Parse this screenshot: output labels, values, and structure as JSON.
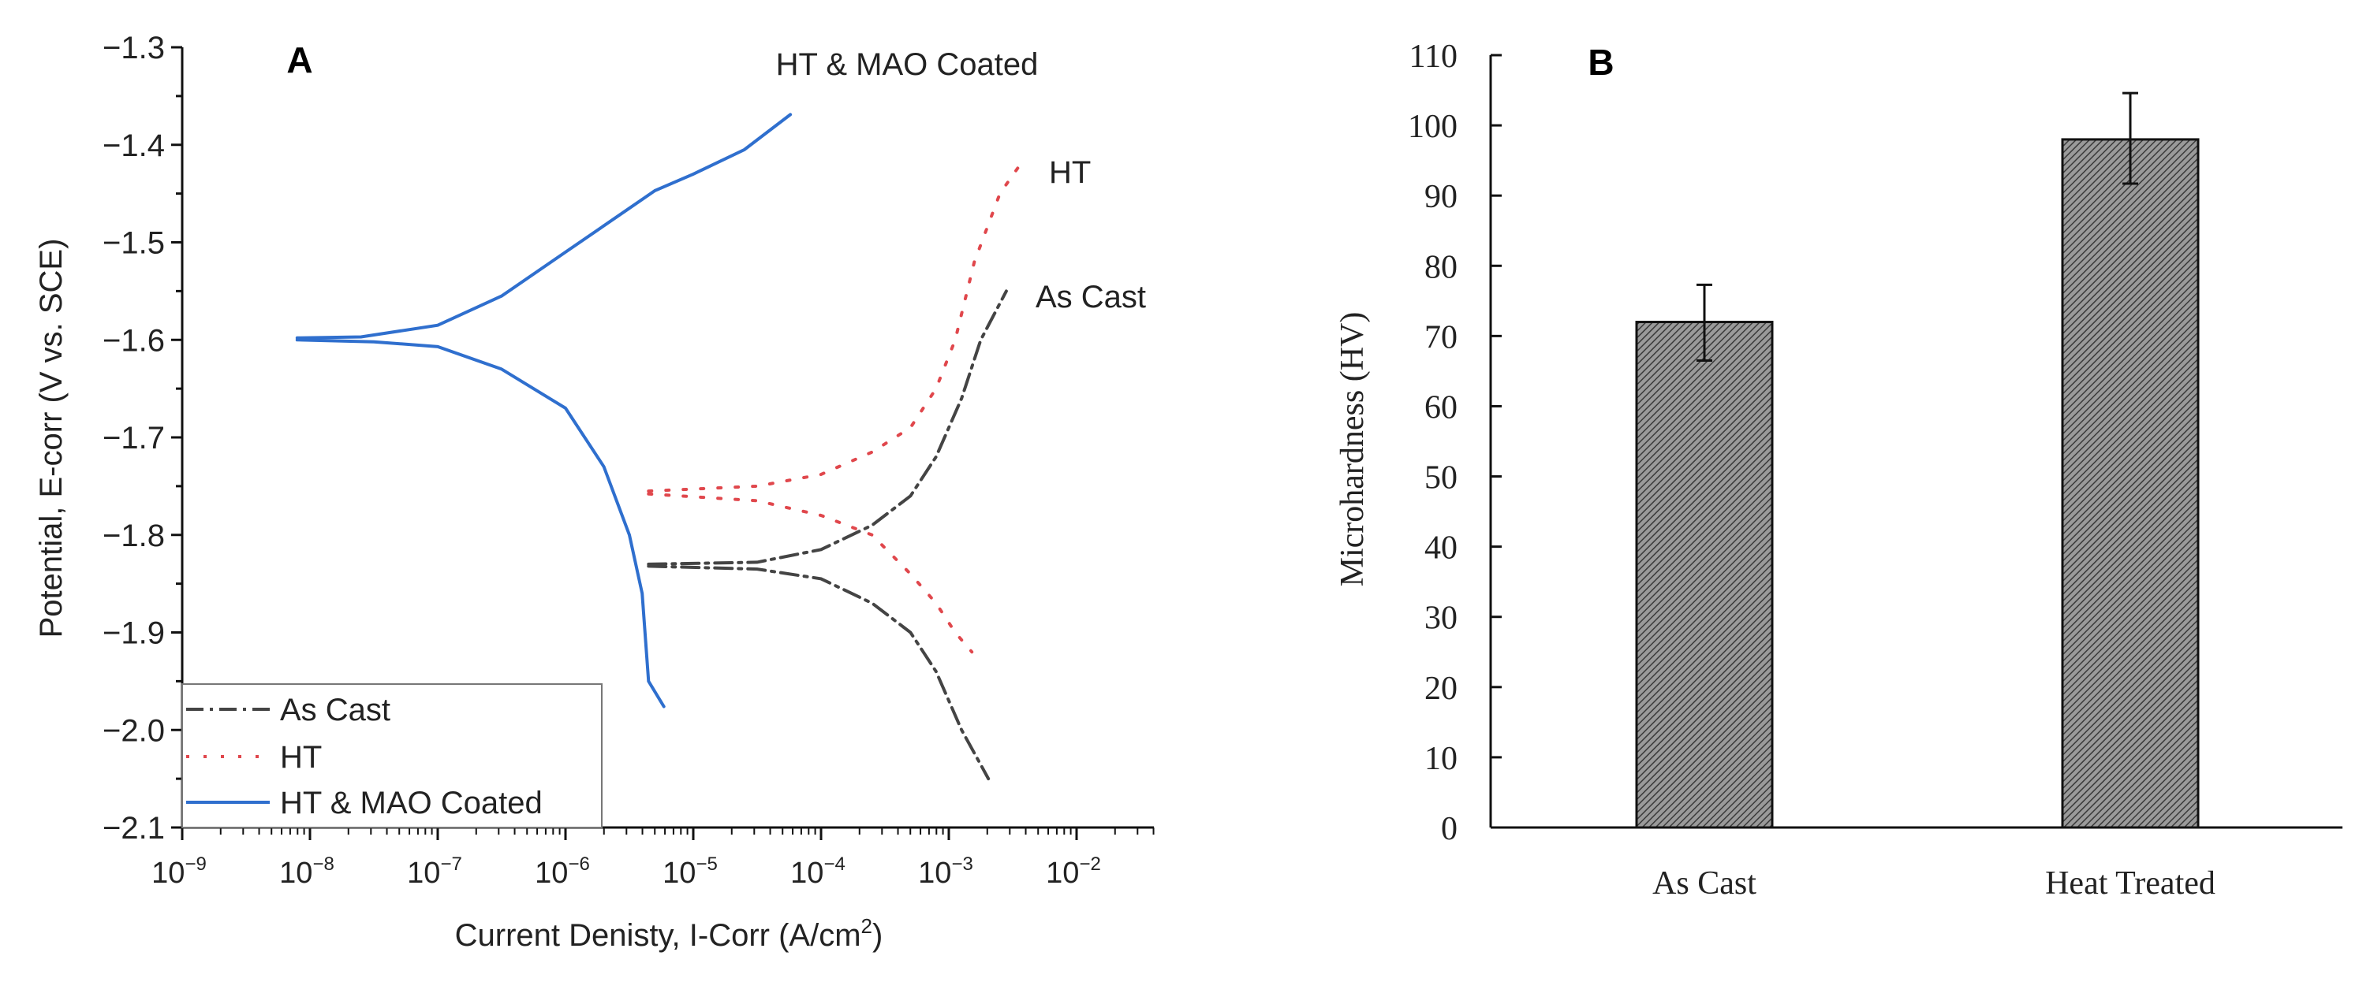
{
  "chart_data": [
    {
      "type": "line",
      "panel_label": "A",
      "xlabel": "Current Denisty, I-Corr (A/cm",
      "xlabel_sup": "2",
      "xlabel_end": ")",
      "ylabel": "Potential, E-corr (V vs. SCE)",
      "xscale": "log",
      "xlim_log10": [
        -9,
        -1.4
      ],
      "ylim": [
        -2.1,
        -1.3
      ],
      "x_ticks": [
        {
          "base": "10",
          "exp": "-9"
        },
        {
          "base": "10",
          "exp": "-8"
        },
        {
          "base": "10",
          "exp": "-7"
        },
        {
          "base": "10",
          "exp": "-6"
        },
        {
          "base": "10",
          "exp": "-5"
        },
        {
          "base": "10",
          "exp": "-4"
        },
        {
          "base": "10",
          "exp": "-3"
        },
        {
          "base": "10",
          "exp": "-2"
        }
      ],
      "y_ticks": [
        "-1.3",
        "-1.4",
        "-1.5",
        "-1.6",
        "-1.7",
        "-1.8",
        "-1.9",
        "-2.0",
        "-2.1"
      ],
      "legend_position": "bottom-left",
      "annotations": [
        "HT & MAO Coated",
        "HT",
        "As Cast"
      ],
      "series": [
        {
          "name": "As Cast",
          "color": "#444444",
          "style": "dash-dot",
          "branches": [
            [
              [
                -5.35,
                -1.83
              ],
              [
                -4.5,
                -1.828
              ],
              [
                -4,
                -1.815
              ],
              [
                -3.6,
                -1.79
              ],
              [
                -3.3,
                -1.76
              ],
              [
                -3.1,
                -1.72
              ],
              [
                -2.9,
                -1.66
              ],
              [
                -2.75,
                -1.6
              ],
              [
                -2.55,
                -1.55
              ]
            ],
            [
              [
                -5.35,
                -1.832
              ],
              [
                -4.5,
                -1.835
              ],
              [
                -4,
                -1.845
              ],
              [
                -3.6,
                -1.87
              ],
              [
                -3.3,
                -1.9
              ],
              [
                -3.1,
                -1.94
              ],
              [
                -2.9,
                -2.0
              ],
              [
                -2.69,
                -2.05
              ]
            ]
          ]
        },
        {
          "name": "HT",
          "color": "#e0474c",
          "style": "dotted",
          "branches": [
            [
              [
                -5.35,
                -1.755
              ],
              [
                -4.5,
                -1.75
              ],
              [
                -4,
                -1.738
              ],
              [
                -3.6,
                -1.715
              ],
              [
                -3.3,
                -1.69
              ],
              [
                -3.1,
                -1.65
              ],
              [
                -2.95,
                -1.6
              ],
              [
                -2.8,
                -1.52
              ],
              [
                -2.6,
                -1.45
              ],
              [
                -2.44,
                -1.42
              ]
            ],
            [
              [
                -5.35,
                -1.758
              ],
              [
                -4.5,
                -1.765
              ],
              [
                -4,
                -1.78
              ],
              [
                -3.6,
                -1.8
              ],
              [
                -3.3,
                -1.84
              ],
              [
                -3.1,
                -1.87
              ],
              [
                -2.95,
                -1.9
              ],
              [
                -2.82,
                -1.92
              ]
            ]
          ]
        },
        {
          "name": "HT & MAO Coated",
          "color": "#2f6fce",
          "style": "solid",
          "branches": [
            [
              [
                -8.1,
                -1.598
              ],
              [
                -7.6,
                -1.597
              ],
              [
                -7,
                -1.585
              ],
              [
                -6.5,
                -1.555
              ],
              [
                -6,
                -1.51
              ],
              [
                -5.5,
                -1.465
              ],
              [
                -5.3,
                -1.447
              ],
              [
                -5,
                -1.43
              ],
              [
                -4.6,
                -1.405
              ],
              [
                -4.24,
                -1.369
              ]
            ],
            [
              [
                -8.1,
                -1.6
              ],
              [
                -7.5,
                -1.602
              ],
              [
                -7,
                -1.607
              ],
              [
                -6.5,
                -1.63
              ],
              [
                -6,
                -1.67
              ],
              [
                -5.7,
                -1.73
              ],
              [
                -5.5,
                -1.8
              ],
              [
                -5.4,
                -1.86
              ],
              [
                -5.35,
                -1.95
              ],
              [
                -5.23,
                -1.976
              ]
            ]
          ]
        }
      ]
    },
    {
      "type": "bar",
      "panel_label": "B",
      "xlabel": "",
      "ylabel": "Microhardness (HV)",
      "ylim": [
        0,
        110
      ],
      "y_ticks": [
        "0",
        "10",
        "20",
        "30",
        "40",
        "50",
        "60",
        "70",
        "80",
        "90",
        "100",
        "110"
      ],
      "categories": [
        "As Cast",
        "Heat Treated"
      ],
      "values": [
        72,
        98
      ],
      "error_low": [
        66.5,
        91.7
      ],
      "error_high": [
        77.3,
        104.6
      ],
      "bar_color": "#808080"
    }
  ]
}
